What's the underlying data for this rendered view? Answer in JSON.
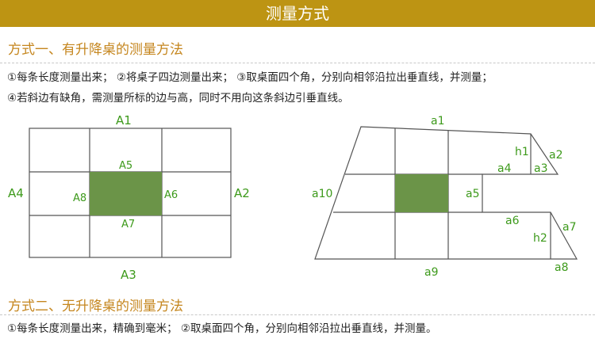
{
  "header": {
    "title": "测量方式"
  },
  "method1": {
    "title": "方式一、有升降桌的测量方法",
    "line1": "①每条长度测量出来；  ②将桌子四边测量出来；   ③取桌面四个角，分别向相邻沿拉出垂直线，并测量；",
    "line2": "④若斜边有缺角，需测量所标的边与高，同时不用向这条斜边引垂直线。"
  },
  "diagram_left": {
    "labels": {
      "A1": "A1",
      "A2": "A2",
      "A3": "A3",
      "A4": "A4",
      "A5": "A5",
      "A6": "A6",
      "A7": "A7",
      "A8": "A8"
    }
  },
  "diagram_right": {
    "labels": {
      "a1": "a1",
      "a2": "a2",
      "a3": "a3",
      "a4": "a4",
      "a5": "a5",
      "a6": "a6",
      "a7": "a7",
      "a8": "a8",
      "a9": "a9",
      "a10": "a10",
      "h1": "h1",
      "h2": "h2"
    }
  },
  "method2": {
    "title": "方式二、无升降桌的测量方法",
    "line1": "①每条长度测量出来，精确到毫米；     ②取桌面四个角，分别向相邻沿拉出垂直线，并测量。"
  },
  "colors": {
    "banner": "#bd9413",
    "title": "#c5861e",
    "label": "#3d9a1b",
    "fill": "#6b9448",
    "stroke": "#555555"
  }
}
